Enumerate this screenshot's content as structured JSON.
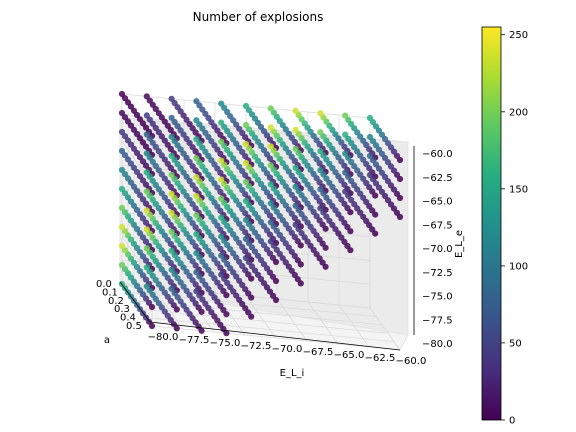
{
  "chart_data": {
    "type": "scatter",
    "title": "Number of explosions",
    "axes": {
      "x": {
        "label": "E_L_i",
        "ticks": [
          "−80.0",
          "−77.5",
          "−75.0",
          "−72.5",
          "−70.0",
          "−67.5",
          "−65.0",
          "−62.5",
          "−60.0"
        ],
        "range": [
          -80,
          -60
        ]
      },
      "y": {
        "label": "a",
        "ticks": [
          "0.0",
          "0.1",
          "0.2",
          "0.3",
          "0.4",
          "0.5"
        ],
        "range": [
          0,
          0.5
        ]
      },
      "z": {
        "label": "E_L_e",
        "ticks": [
          "−60.0",
          "−62.5",
          "−65.0",
          "−67.5",
          "−70.0",
          "−72.5",
          "−75.0",
          "−77.5",
          "−80.0"
        ],
        "range": [
          -80,
          -60
        ]
      }
    },
    "grid": {
      "E_L_i": [
        -80,
        -78,
        -76,
        -74,
        -72,
        -70,
        -68,
        -66,
        -64,
        -62,
        -60
      ],
      "a": [
        0.0,
        0.05,
        0.1,
        0.15,
        0.2,
        0.25,
        0.3,
        0.35,
        0.4,
        0.45,
        0.5
      ],
      "E_L_e": [
        -80,
        -78,
        -76,
        -74,
        -72,
        -70,
        -68,
        -66,
        -64,
        -62,
        -60
      ]
    },
    "color_scale": "viridis",
    "colorbar": {
      "range": [
        0,
        255
      ],
      "ticks": [
        "0",
        "50",
        "100",
        "150",
        "200",
        "250"
      ]
    },
    "grid_lines": true
  }
}
